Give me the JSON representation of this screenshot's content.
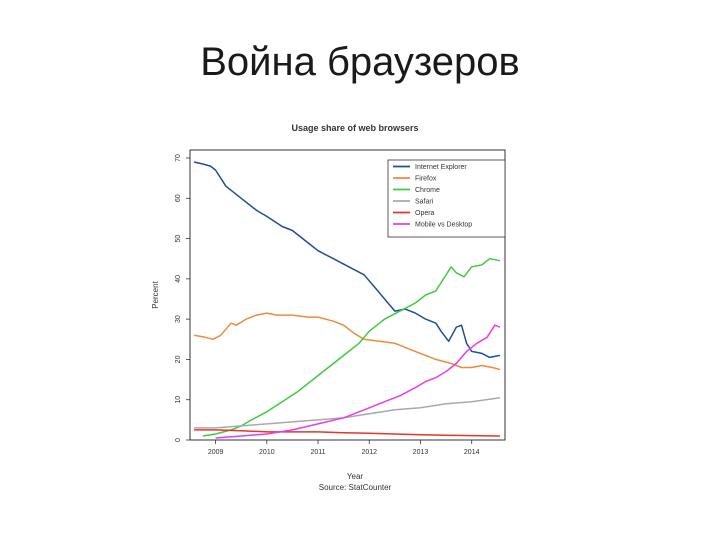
{
  "slide": {
    "title": "Война браузеров"
  },
  "chart_data": {
    "type": "line",
    "title": "Usage share of web browsers",
    "xlabel": "Year",
    "caption": "Source: StatCounter",
    "ylabel": "Percent",
    "xlim": [
      2008.5,
      2014.65
    ],
    "ylim": [
      0,
      70
    ],
    "x_ticks": [
      2009,
      2010,
      2011,
      2012,
      2013,
      2014
    ],
    "y_ticks": [
      0,
      10,
      20,
      30,
      40,
      50,
      60,
      70
    ],
    "legend_position": "top-right",
    "series": [
      {
        "name": "Internet Explorer",
        "color": "#1f4e9a",
        "points": [
          [
            2008.58,
            69
          ],
          [
            2008.75,
            68.5
          ],
          [
            2008.9,
            68
          ],
          [
            2009.0,
            67
          ],
          [
            2009.2,
            63
          ],
          [
            2009.5,
            60
          ],
          [
            2009.8,
            57
          ],
          [
            2010.0,
            55.5
          ],
          [
            2010.3,
            53
          ],
          [
            2010.5,
            52
          ],
          [
            2010.8,
            49
          ],
          [
            2011.0,
            47
          ],
          [
            2011.3,
            45
          ],
          [
            2011.6,
            43
          ],
          [
            2011.9,
            41
          ],
          [
            2012.1,
            38
          ],
          [
            2012.3,
            35
          ],
          [
            2012.5,
            32
          ],
          [
            2012.7,
            32.5
          ],
          [
            2012.9,
            31.5
          ],
          [
            2013.1,
            30
          ],
          [
            2013.3,
            29
          ],
          [
            2013.4,
            27
          ],
          [
            2013.55,
            24.5
          ],
          [
            2013.7,
            28
          ],
          [
            2013.8,
            28.5
          ],
          [
            2013.9,
            24
          ],
          [
            2014.0,
            22
          ],
          [
            2014.2,
            21.5
          ],
          [
            2014.35,
            20.5
          ],
          [
            2014.55,
            21
          ]
        ]
      },
      {
        "name": "Firefox",
        "color": "#f08a3c",
        "points": [
          [
            2008.58,
            26
          ],
          [
            2008.8,
            25.5
          ],
          [
            2008.95,
            25
          ],
          [
            2009.1,
            26
          ],
          [
            2009.3,
            29
          ],
          [
            2009.4,
            28.5
          ],
          [
            2009.6,
            30
          ],
          [
            2009.8,
            31
          ],
          [
            2010.0,
            31.5
          ],
          [
            2010.2,
            31
          ],
          [
            2010.5,
            31
          ],
          [
            2010.8,
            30.5
          ],
          [
            2011.0,
            30.5
          ],
          [
            2011.3,
            29.5
          ],
          [
            2011.5,
            28.5
          ],
          [
            2011.7,
            26.5
          ],
          [
            2011.9,
            25
          ],
          [
            2012.2,
            24.5
          ],
          [
            2012.5,
            24
          ],
          [
            2012.8,
            22.5
          ],
          [
            2013.0,
            21.5
          ],
          [
            2013.3,
            20
          ],
          [
            2013.6,
            19
          ],
          [
            2013.8,
            18
          ],
          [
            2014.0,
            18
          ],
          [
            2014.2,
            18.5
          ],
          [
            2014.4,
            18
          ],
          [
            2014.55,
            17.5
          ]
        ]
      },
      {
        "name": "Chrome",
        "color": "#3ecb3e",
        "points": [
          [
            2008.75,
            1
          ],
          [
            2009.0,
            1.5
          ],
          [
            2009.3,
            2.5
          ],
          [
            2009.5,
            3.5
          ],
          [
            2009.7,
            5
          ],
          [
            2010.0,
            7
          ],
          [
            2010.3,
            9.5
          ],
          [
            2010.6,
            12
          ],
          [
            2010.9,
            15
          ],
          [
            2011.2,
            18
          ],
          [
            2011.5,
            21
          ],
          [
            2011.8,
            24
          ],
          [
            2012.0,
            27
          ],
          [
            2012.3,
            30
          ],
          [
            2012.6,
            32
          ],
          [
            2012.9,
            34
          ],
          [
            2013.1,
            36
          ],
          [
            2013.3,
            37
          ],
          [
            2013.45,
            40
          ],
          [
            2013.6,
            43
          ],
          [
            2013.7,
            41.5
          ],
          [
            2013.85,
            40.5
          ],
          [
            2014.0,
            43
          ],
          [
            2014.2,
            43.5
          ],
          [
            2014.35,
            45
          ],
          [
            2014.55,
            44.5
          ]
        ]
      },
      {
        "name": "Safari",
        "color": "#a9a9a9",
        "points": [
          [
            2008.58,
            3
          ],
          [
            2009.0,
            3
          ],
          [
            2009.5,
            3.5
          ],
          [
            2010.0,
            4
          ],
          [
            2010.5,
            4.5
          ],
          [
            2011.0,
            5
          ],
          [
            2011.5,
            5.5
          ],
          [
            2012.0,
            6.5
          ],
          [
            2012.5,
            7.5
          ],
          [
            2013.0,
            8
          ],
          [
            2013.5,
            9
          ],
          [
            2014.0,
            9.5
          ],
          [
            2014.55,
            10.5
          ]
        ]
      },
      {
        "name": "Opera",
        "color": "#e8342a",
        "points": [
          [
            2008.58,
            2.5
          ],
          [
            2009.0,
            2.5
          ],
          [
            2009.5,
            2.3
          ],
          [
            2010.0,
            2
          ],
          [
            2010.5,
            2
          ],
          [
            2011.0,
            2
          ],
          [
            2011.5,
            1.8
          ],
          [
            2012.0,
            1.7
          ],
          [
            2012.5,
            1.5
          ],
          [
            2013.0,
            1.3
          ],
          [
            2013.5,
            1.2
          ],
          [
            2014.0,
            1.1
          ],
          [
            2014.55,
            1
          ]
        ]
      },
      {
        "name": "Mobile vs Desktop",
        "color": "#e83ce8",
        "points": [
          [
            2009.0,
            0.5
          ],
          [
            2009.5,
            1
          ],
          [
            2010.0,
            1.5
          ],
          [
            2010.5,
            2.5
          ],
          [
            2011.0,
            4
          ],
          [
            2011.5,
            5.5
          ],
          [
            2012.0,
            8
          ],
          [
            2012.3,
            9.5
          ],
          [
            2012.6,
            11
          ],
          [
            2012.9,
            13
          ],
          [
            2013.1,
            14.5
          ],
          [
            2013.3,
            15.5
          ],
          [
            2013.5,
            17
          ],
          [
            2013.7,
            19
          ],
          [
            2013.9,
            22
          ],
          [
            2014.1,
            24
          ],
          [
            2014.3,
            25.5
          ],
          [
            2014.45,
            28.5
          ],
          [
            2014.55,
            28
          ]
        ]
      }
    ]
  }
}
